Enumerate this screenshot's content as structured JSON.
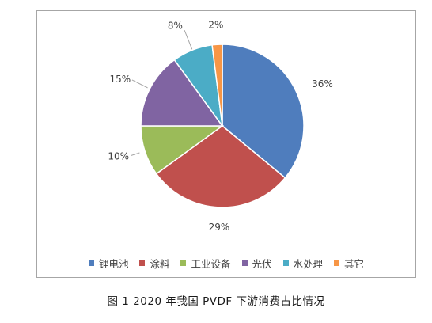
{
  "chart_data": {
    "type": "pie",
    "categories": [
      "锂电池",
      "涂料",
      "工业设备",
      "光伏",
      "水处理",
      "其它"
    ],
    "values": [
      36,
      29,
      10,
      15,
      8,
      2
    ],
    "value_labels": [
      "36%",
      "29%",
      "10%",
      "15%",
      "8%",
      "2%"
    ],
    "colors": [
      "#4f7dbd",
      "#c0504d",
      "#9bbb59",
      "#8064a2",
      "#4bacc6",
      "#f79646"
    ],
    "start_angle": "12 o'clock",
    "direction": "clockwise",
    "legend_position": "bottom"
  },
  "caption": "图 1  2020 年我国 PVDF 下游消费占比情况"
}
